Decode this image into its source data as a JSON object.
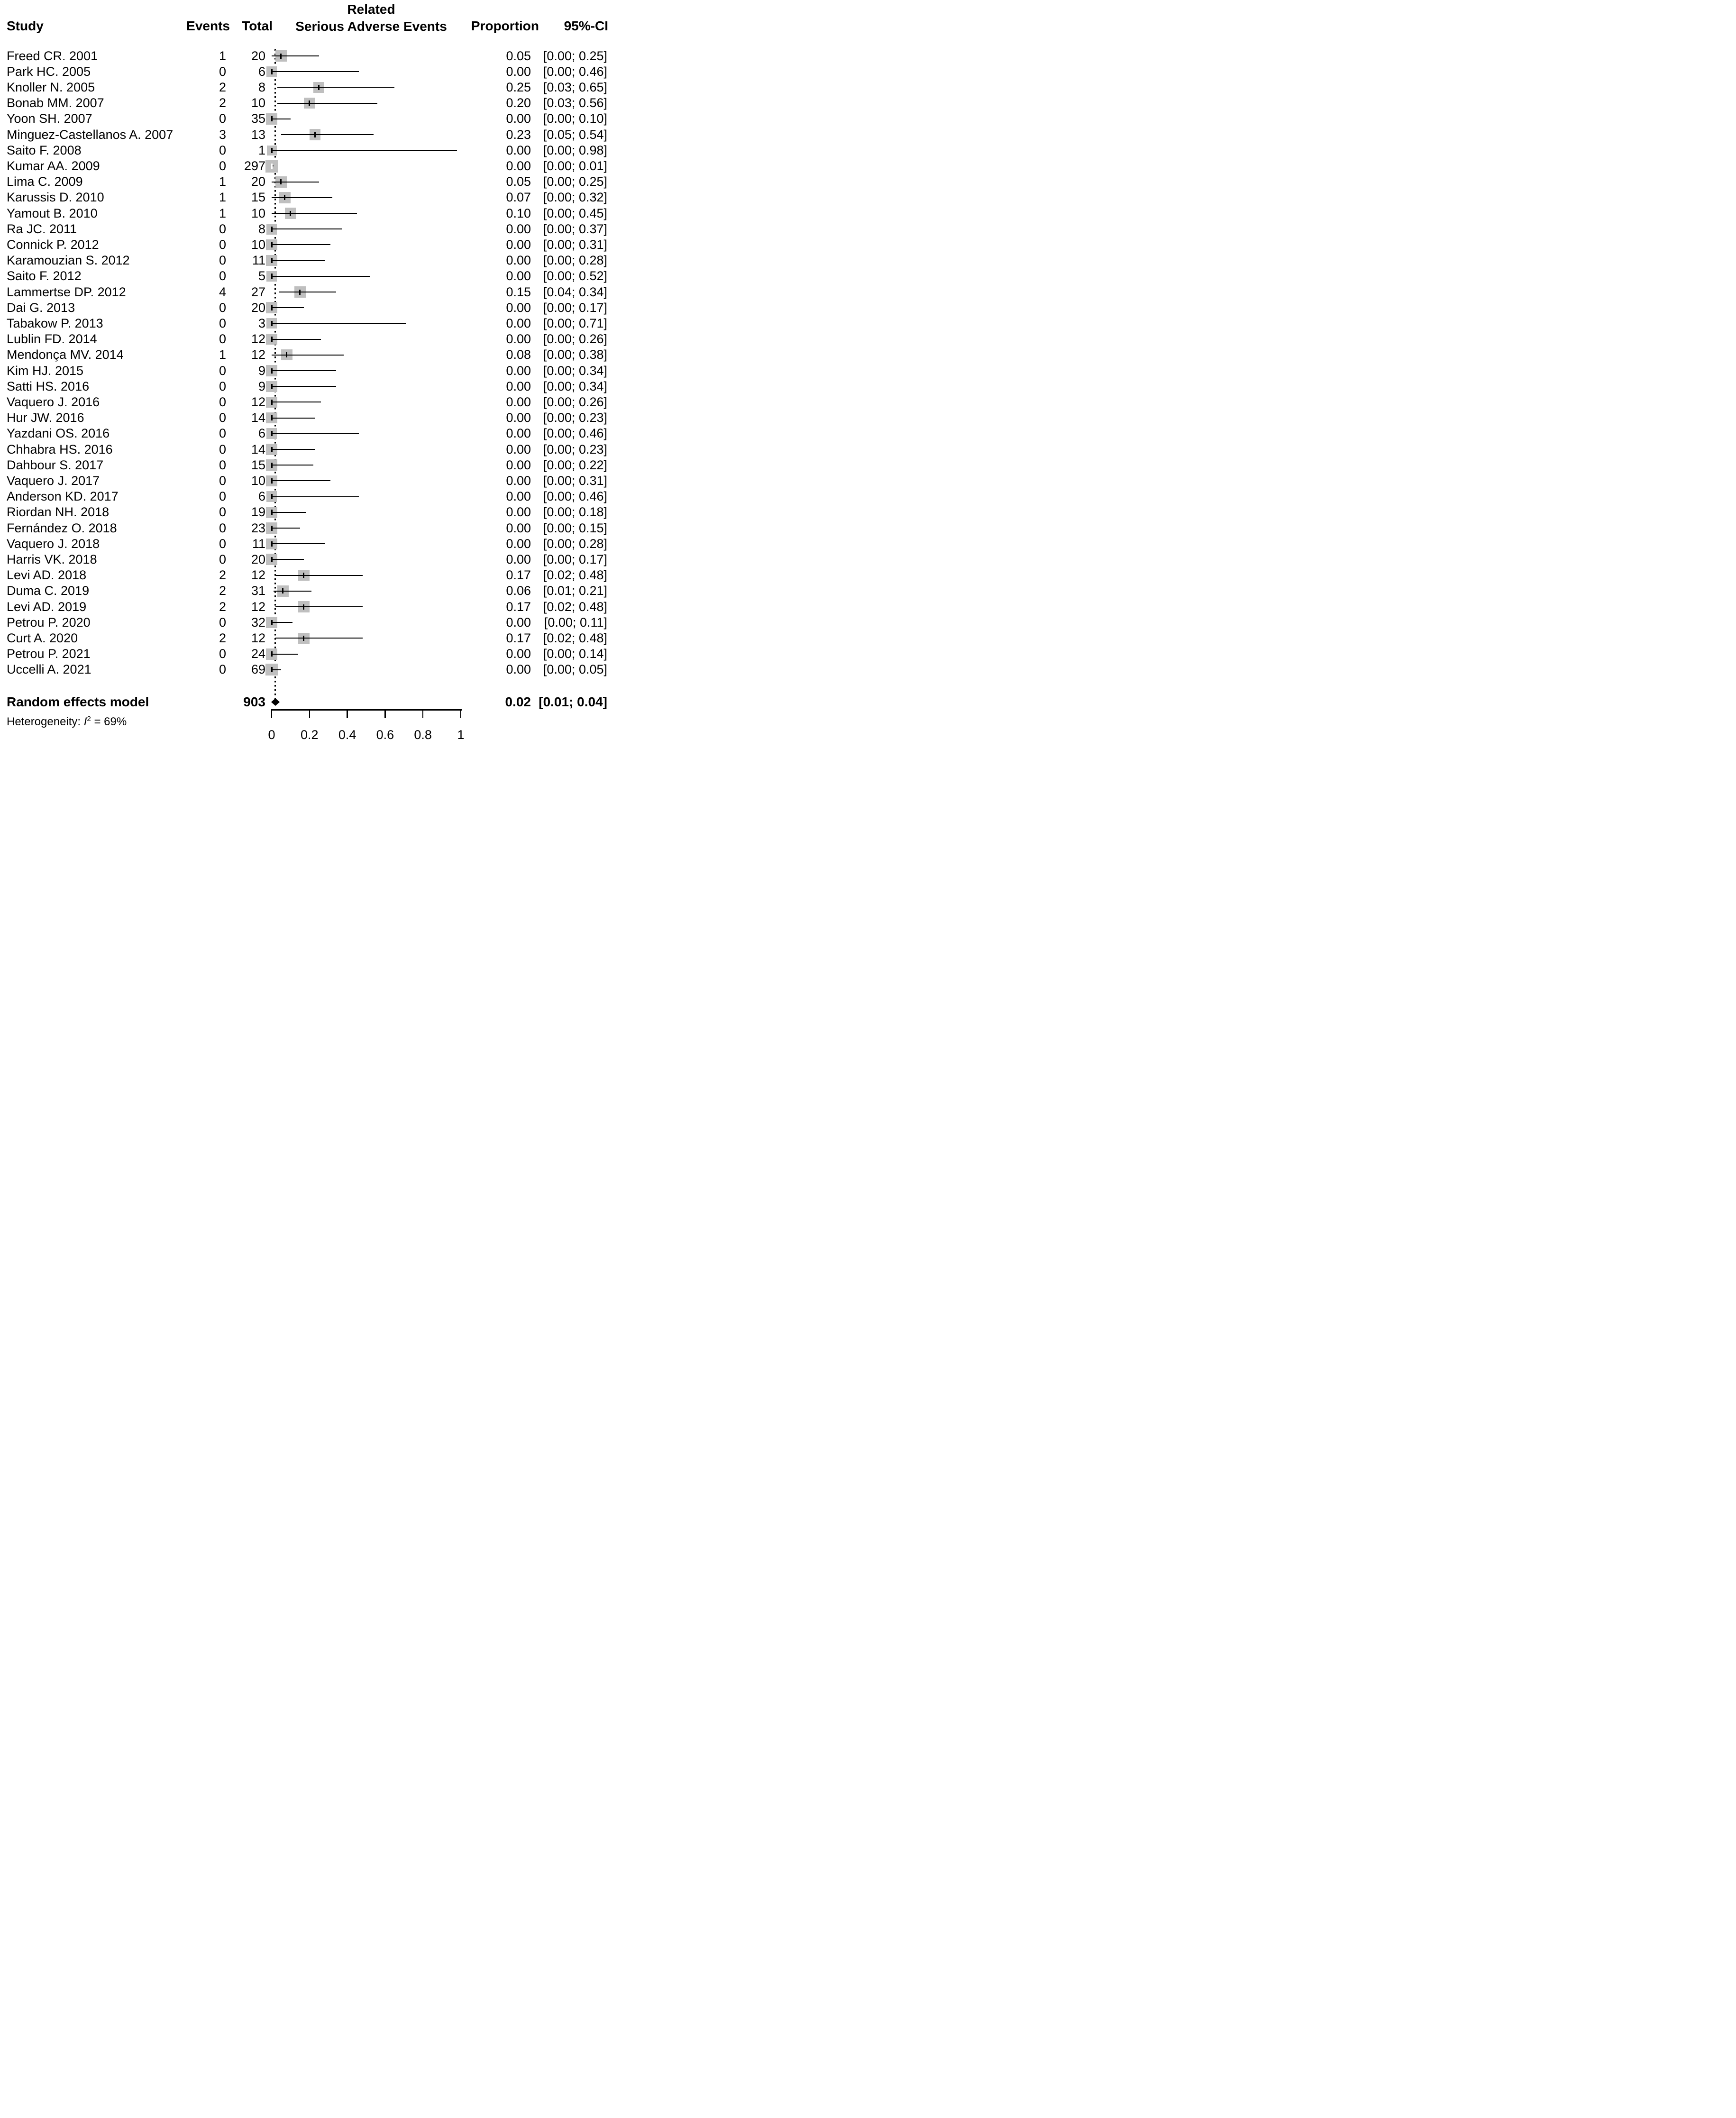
{
  "header": {
    "col_study": "Study",
    "col_events": "Events",
    "col_total": "Total",
    "outcome_line1": "Related",
    "outcome_line2": "Serious Adverse Events",
    "col_proportion": "Proportion",
    "col_ci": "95%-CI"
  },
  "colors": {
    "square": "#bfbfbf",
    "ci_line": "#000000",
    "marker": "#000000",
    "marker_inverted": "#ffffff",
    "diamond": "#000000",
    "reference_line": "#000000"
  },
  "chart_data": {
    "type": "forest",
    "outcome_label": "Related Serious Adverse Events",
    "x_axis": {
      "range": [
        0,
        1
      ],
      "ticks": [
        {
          "value": 0,
          "label": "0"
        },
        {
          "value": 0.2,
          "label": "0.2"
        },
        {
          "value": 0.4,
          "label": "0.4"
        },
        {
          "value": 0.6,
          "label": "0.6"
        },
        {
          "value": 0.8,
          "label": "0.8"
        },
        {
          "value": 1,
          "label": "1"
        }
      ]
    },
    "reference_value": 0.02,
    "studies": [
      {
        "name": "Freed CR. 2001",
        "events": 1,
        "total": 20,
        "p": 0.05,
        "lo": 0,
        "hi": 0.25,
        "proportion": "0.05",
        "ci": "[0.00; 0.25]"
      },
      {
        "name": "Park HC. 2005",
        "events": 0,
        "total": 6,
        "p": 0,
        "lo": 0,
        "hi": 0.46,
        "proportion": "0.00",
        "ci": "[0.00; 0.46]"
      },
      {
        "name": "Knoller N. 2005",
        "events": 2,
        "total": 8,
        "p": 0.25,
        "lo": 0.03,
        "hi": 0.65,
        "proportion": "0.25",
        "ci": "[0.03; 0.65]"
      },
      {
        "name": "Bonab MM. 2007",
        "events": 2,
        "total": 10,
        "p": 0.2,
        "lo": 0.03,
        "hi": 0.56,
        "proportion": "0.20",
        "ci": "[0.03; 0.56]"
      },
      {
        "name": "Yoon SH. 2007",
        "events": 0,
        "total": 35,
        "p": 0,
        "lo": 0,
        "hi": 0.1,
        "proportion": "0.00",
        "ci": "[0.00; 0.10]"
      },
      {
        "name": "Minguez-Castellanos A. 2007",
        "events": 3,
        "total": 13,
        "p": 0.23,
        "lo": 0.05,
        "hi": 0.54,
        "proportion": "0.23",
        "ci": "[0.05; 0.54]"
      },
      {
        "name": "Saito F. 2008",
        "events": 0,
        "total": 1,
        "p": 0,
        "lo": 0,
        "hi": 0.98,
        "proportion": "0.00",
        "ci": "[0.00; 0.98]"
      },
      {
        "name": "Kumar AA. 2009",
        "events": 0,
        "total": 297,
        "p": 0,
        "lo": 0,
        "hi": 0.01,
        "proportion": "0.00",
        "ci": "[0.00; 0.01]"
      },
      {
        "name": "Lima C. 2009",
        "events": 1,
        "total": 20,
        "p": 0.05,
        "lo": 0,
        "hi": 0.25,
        "proportion": "0.05",
        "ci": "[0.00; 0.25]"
      },
      {
        "name": "Karussis D. 2010",
        "events": 1,
        "total": 15,
        "p": 0.07,
        "lo": 0,
        "hi": 0.32,
        "proportion": "0.07",
        "ci": "[0.00; 0.32]"
      },
      {
        "name": "Yamout B. 2010",
        "events": 1,
        "total": 10,
        "p": 0.1,
        "lo": 0,
        "hi": 0.45,
        "proportion": "0.10",
        "ci": "[0.00; 0.45]"
      },
      {
        "name": "Ra JC. 2011",
        "events": 0,
        "total": 8,
        "p": 0,
        "lo": 0,
        "hi": 0.37,
        "proportion": "0.00",
        "ci": "[0.00; 0.37]"
      },
      {
        "name": "Connick P. 2012",
        "events": 0,
        "total": 10,
        "p": 0,
        "lo": 0,
        "hi": 0.31,
        "proportion": "0.00",
        "ci": "[0.00; 0.31]"
      },
      {
        "name": "Karamouzian S. 2012",
        "events": 0,
        "total": 11,
        "p": 0,
        "lo": 0,
        "hi": 0.28,
        "proportion": "0.00",
        "ci": "[0.00; 0.28]"
      },
      {
        "name": "Saito F. 2012",
        "events": 0,
        "total": 5,
        "p": 0,
        "lo": 0,
        "hi": 0.52,
        "proportion": "0.00",
        "ci": "[0.00; 0.52]"
      },
      {
        "name": "Lammertse DP. 2012",
        "events": 4,
        "total": 27,
        "p": 0.15,
        "lo": 0.04,
        "hi": 0.34,
        "proportion": "0.15",
        "ci": "[0.04; 0.34]"
      },
      {
        "name": "Dai G. 2013",
        "events": 0,
        "total": 20,
        "p": 0,
        "lo": 0,
        "hi": 0.17,
        "proportion": "0.00",
        "ci": "[0.00; 0.17]"
      },
      {
        "name": "Tabakow P. 2013",
        "events": 0,
        "total": 3,
        "p": 0,
        "lo": 0,
        "hi": 0.71,
        "proportion": "0.00",
        "ci": "[0.00; 0.71]"
      },
      {
        "name": "Lublin FD. 2014",
        "events": 0,
        "total": 12,
        "p": 0,
        "lo": 0,
        "hi": 0.26,
        "proportion": "0.00",
        "ci": "[0.00; 0.26]"
      },
      {
        "name": "Mendonça MV. 2014",
        "events": 1,
        "total": 12,
        "p": 0.08,
        "lo": 0,
        "hi": 0.38,
        "proportion": "0.08",
        "ci": "[0.00; 0.38]"
      },
      {
        "name": "Kim HJ. 2015",
        "events": 0,
        "total": 9,
        "p": 0,
        "lo": 0,
        "hi": 0.34,
        "proportion": "0.00",
        "ci": "[0.00; 0.34]"
      },
      {
        "name": "Satti HS. 2016",
        "events": 0,
        "total": 9,
        "p": 0,
        "lo": 0,
        "hi": 0.34,
        "proportion": "0.00",
        "ci": "[0.00; 0.34]"
      },
      {
        "name": "Vaquero J. 2016",
        "events": 0,
        "total": 12,
        "p": 0,
        "lo": 0,
        "hi": 0.26,
        "proportion": "0.00",
        "ci": "[0.00; 0.26]"
      },
      {
        "name": "Hur JW. 2016",
        "events": 0,
        "total": 14,
        "p": 0,
        "lo": 0,
        "hi": 0.23,
        "proportion": "0.00",
        "ci": "[0.00; 0.23]"
      },
      {
        "name": "Yazdani OS. 2016",
        "events": 0,
        "total": 6,
        "p": 0,
        "lo": 0,
        "hi": 0.46,
        "proportion": "0.00",
        "ci": "[0.00; 0.46]"
      },
      {
        "name": "Chhabra HS. 2016",
        "events": 0,
        "total": 14,
        "p": 0,
        "lo": 0,
        "hi": 0.23,
        "proportion": "0.00",
        "ci": "[0.00; 0.23]"
      },
      {
        "name": "Dahbour S. 2017",
        "events": 0,
        "total": 15,
        "p": 0,
        "lo": 0,
        "hi": 0.22,
        "proportion": "0.00",
        "ci": "[0.00; 0.22]"
      },
      {
        "name": "Vaquero J. 2017",
        "events": 0,
        "total": 10,
        "p": 0,
        "lo": 0,
        "hi": 0.31,
        "proportion": "0.00",
        "ci": "[0.00; 0.31]"
      },
      {
        "name": "Anderson KD. 2017",
        "events": 0,
        "total": 6,
        "p": 0,
        "lo": 0,
        "hi": 0.46,
        "proportion": "0.00",
        "ci": "[0.00; 0.46]"
      },
      {
        "name": "Riordan NH. 2018",
        "events": 0,
        "total": 19,
        "p": 0,
        "lo": 0,
        "hi": 0.18,
        "proportion": "0.00",
        "ci": "[0.00; 0.18]"
      },
      {
        "name": "Fernández O. 2018",
        "events": 0,
        "total": 23,
        "p": 0,
        "lo": 0,
        "hi": 0.15,
        "proportion": "0.00",
        "ci": "[0.00; 0.15]"
      },
      {
        "name": "Vaquero J. 2018",
        "events": 0,
        "total": 11,
        "p": 0,
        "lo": 0,
        "hi": 0.28,
        "proportion": "0.00",
        "ci": "[0.00; 0.28]"
      },
      {
        "name": "Harris VK. 2018",
        "events": 0,
        "total": 20,
        "p": 0,
        "lo": 0,
        "hi": 0.17,
        "proportion": "0.00",
        "ci": "[0.00; 0.17]"
      },
      {
        "name": "Levi AD. 2018",
        "events": 2,
        "total": 12,
        "p": 0.17,
        "lo": 0.02,
        "hi": 0.48,
        "proportion": "0.17",
        "ci": "[0.02; 0.48]"
      },
      {
        "name": "Duma C. 2019",
        "events": 2,
        "total": 31,
        "p": 0.06,
        "lo": 0.01,
        "hi": 0.21,
        "proportion": "0.06",
        "ci": "[0.01; 0.21]"
      },
      {
        "name": "Levi AD. 2019",
        "events": 2,
        "total": 12,
        "p": 0.17,
        "lo": 0.02,
        "hi": 0.48,
        "proportion": "0.17",
        "ci": "[0.02; 0.48]"
      },
      {
        "name": "Petrou P. 2020",
        "events": 0,
        "total": 32,
        "p": 0,
        "lo": 0,
        "hi": 0.11,
        "proportion": "0.00",
        "ci": "[0.00; 0.11]"
      },
      {
        "name": "Curt A. 2020",
        "events": 2,
        "total": 12,
        "p": 0.17,
        "lo": 0.02,
        "hi": 0.48,
        "proportion": "0.17",
        "ci": "[0.02; 0.48]"
      },
      {
        "name": "Petrou P. 2021",
        "events": 0,
        "total": 24,
        "p": 0,
        "lo": 0,
        "hi": 0.14,
        "proportion": "0.00",
        "ci": "[0.00; 0.14]"
      },
      {
        "name": "Uccelli A. 2021",
        "events": 0,
        "total": 69,
        "p": 0,
        "lo": 0,
        "hi": 0.05,
        "proportion": "0.00",
        "ci": "[0.00; 0.05]"
      }
    ],
    "summary": {
      "label": "Random effects model",
      "total": "903",
      "p": 0.02,
      "lo": 0.01,
      "hi": 0.04,
      "proportion": "0.02",
      "ci": "[0.01; 0.04]"
    },
    "heterogeneity": {
      "prefix": "Heterogeneity: ",
      "stat": "I",
      "sup": "2",
      "suffix": " = 69%"
    }
  }
}
